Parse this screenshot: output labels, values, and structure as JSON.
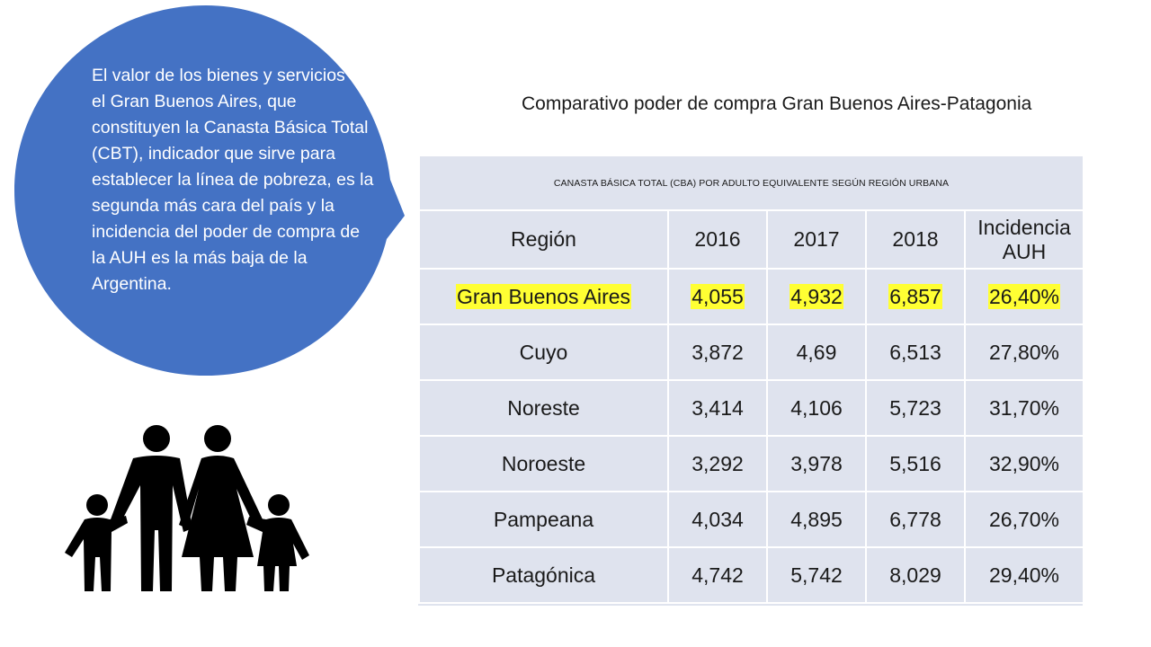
{
  "bubble": {
    "text": "El valor de los bienes y servicios en el Gran Buenos Aires, que constituyen la Canasta Básica Total (CBT), indicador que sirve para establecer la línea de pobreza, es la segunda más cara del país y la incidencia del poder de compra de la AUH es la más baja de la Argentina.",
    "color": "#4472c4"
  },
  "family_icon": "family-icon",
  "title": "Comparativo poder de compra Gran Buenos Aires-Patagonia",
  "table": {
    "caption": "CANASTA BÁSICA TOTAL (CBA) POR ADULTO EQUIVALENTE SEGÚN REGIÓN URBANA",
    "headers": [
      "Región",
      "2016",
      "2017",
      "2018",
      "Incidencia AUH"
    ],
    "rows": [
      [
        "Gran Buenos Aires",
        "4,055",
        "4,932",
        "6,857",
        "26,40%"
      ],
      [
        "Cuyo",
        "3,872",
        "4,69",
        "6,513",
        "27,80%"
      ],
      [
        "Noreste",
        "3,414",
        "4,106",
        "5,723",
        "31,70%"
      ],
      [
        "Noroeste",
        "3,292",
        "3,978",
        "5,516",
        "32,90%"
      ],
      [
        "Pampeana",
        "4,034",
        "4,895",
        "6,778",
        "26,70%"
      ],
      [
        "Patagónica",
        "4,742",
        "5,742",
        "8,029",
        "29,40%"
      ]
    ],
    "highlight_color": "#ffff33",
    "background": "#dfe3ee"
  }
}
